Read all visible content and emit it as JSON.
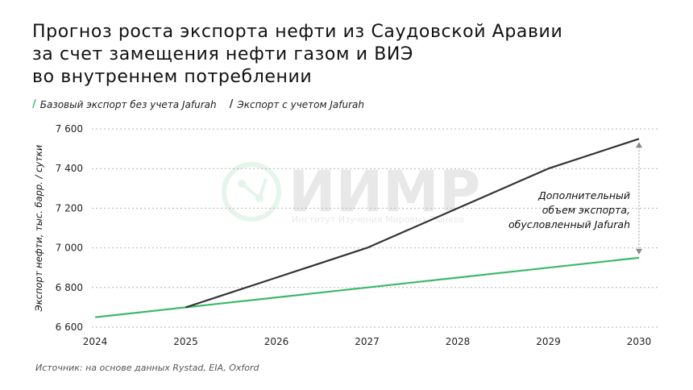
{
  "title": {
    "line1": "Прогноз роста экспорта нефти из Саудовской Аравии",
    "line2": "за счет замещения нефти газом и ВИЭ",
    "line3": "во внутреннем потреблении"
  },
  "legend": [
    {
      "mark": "/",
      "label": "Базовый экспорт без учета Jafurah",
      "color": "#3cb86a"
    },
    {
      "mark": "/",
      "label": "Экспорт с учетом Jafurah",
      "color": "#333333"
    }
  ],
  "source": "Источник: на основе данных Rystad, EIA, Oxford",
  "watermark": {
    "name": "ИИМР",
    "subtitle": "Институт Изучения Мировых Рынков"
  },
  "chart_data": {
    "type": "line",
    "x": [
      2024,
      2025,
      2026,
      2027,
      2028,
      2029,
      2030
    ],
    "x_tick_labels": [
      "2024",
      "2025",
      "2026",
      "2027",
      "2028",
      "2029",
      "2030"
    ],
    "series": [
      {
        "name": "Базовый экспорт без учета Jafurah",
        "color": "#3cb86a",
        "values": [
          6650,
          6700,
          6750,
          6800,
          6850,
          6900,
          6950
        ]
      },
      {
        "name": "Экспорт с учетом Jafurah",
        "color": "#333333",
        "values": [
          null,
          6700,
          6850,
          7000,
          7200,
          7400,
          7550
        ]
      }
    ],
    "ylim": [
      6600,
      7600
    ],
    "y_ticks": [
      6600,
      6800,
      7000,
      7200,
      7400,
      7600
    ],
    "y_tick_labels": [
      "6 600",
      "6 800",
      "7 000",
      "7 200",
      "7 400",
      "7 600"
    ],
    "ylabel": "Экспорт нефти, тыс. барр. / сутки",
    "xlabel": "",
    "grid": true,
    "legend_position": "top-left",
    "annotation": {
      "lines": [
        "Дополнительный",
        "объем экспорта,",
        "обусловленный Jafurah"
      ],
      "x": 2030,
      "from": 6950,
      "to": 7550
    }
  }
}
